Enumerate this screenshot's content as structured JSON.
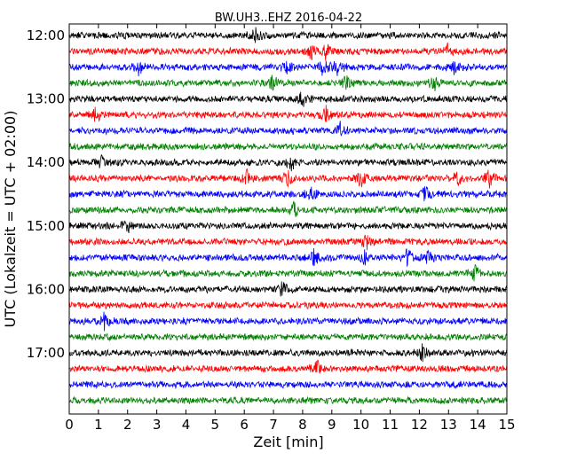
{
  "chart_data": {
    "type": "line",
    "title": "BW.UH3..EHZ 2016-04-22",
    "xlabel": "Zeit  [min]",
    "ylabel": "UTC (Lokalzeit = UTC + 02:00)",
    "xlim": [
      0,
      15
    ],
    "x_ticks": [
      0,
      1,
      2,
      3,
      4,
      5,
      6,
      7,
      8,
      9,
      10,
      11,
      12,
      13,
      14,
      15
    ],
    "y_tick_labels": [
      "12:00",
      "13:00",
      "14:00",
      "15:00",
      "16:00",
      "17:00"
    ],
    "row_start": "12:00",
    "row_duration_min": 15,
    "row_count": 24,
    "grid": false,
    "colors": [
      "#000000",
      "#ff0000",
      "#0000ff",
      "#008000"
    ],
    "series": [
      {
        "label": "12:00",
        "events_min": [
          6.4
        ]
      },
      {
        "label": "12:15",
        "events_min": [
          8.3,
          8.8,
          13.0
        ]
      },
      {
        "label": "12:30",
        "events_min": [
          2.4,
          7.5,
          8.7,
          9.2,
          13.2
        ]
      },
      {
        "label": "12:45",
        "events_min": [
          7.0,
          9.5,
          12.5
        ]
      },
      {
        "label": "13:00",
        "events_min": [
          8.0
        ]
      },
      {
        "label": "13:15",
        "events_min": [
          0.9,
          8.8
        ]
      },
      {
        "label": "13:30",
        "events_min": [
          9.3
        ]
      },
      {
        "label": "13:45",
        "events_min": []
      },
      {
        "label": "14:00",
        "events_min": [
          1.1,
          7.6
        ]
      },
      {
        "label": "14:15",
        "events_min": [
          6.1,
          7.5,
          10.0,
          13.3,
          14.4
        ]
      },
      {
        "label": "14:30",
        "events_min": [
          8.3,
          12.2
        ]
      },
      {
        "label": "14:45",
        "events_min": [
          7.7
        ]
      },
      {
        "label": "15:00",
        "events_min": [
          2.0
        ]
      },
      {
        "label": "15:15",
        "events_min": [
          10.2
        ]
      },
      {
        "label": "15:30",
        "events_min": [
          8.4,
          10.1,
          11.6,
          12.3
        ]
      },
      {
        "label": "15:45",
        "events_min": [
          13.9
        ]
      },
      {
        "label": "16:00",
        "events_min": [
          7.3
        ]
      },
      {
        "label": "16:15",
        "events_min": []
      },
      {
        "label": "16:30",
        "events_min": [
          1.2
        ]
      },
      {
        "label": "16:45",
        "events_min": []
      },
      {
        "label": "17:00",
        "events_min": [
          12.1
        ]
      },
      {
        "label": "17:15",
        "events_min": [
          8.5
        ]
      },
      {
        "label": "17:30",
        "events_min": []
      },
      {
        "label": "17:45",
        "events_min": []
      }
    ]
  }
}
